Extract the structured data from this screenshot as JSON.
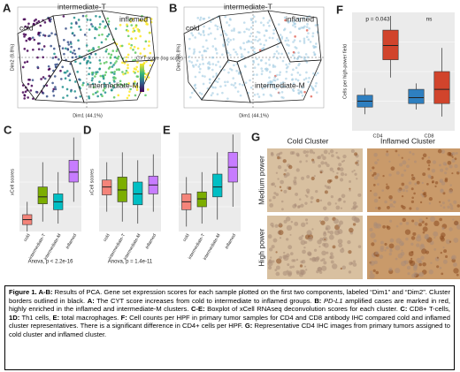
{
  "panels": {
    "A": {
      "letter": "A",
      "clusters": [
        "cold",
        "intermediate-T",
        "inflamed",
        "intermediate-M"
      ],
      "xlabel": "Dim1 (44.1%)",
      "ylabel": "Dim2 (8.8%)",
      "legend": "CYT score (log scale)"
    },
    "B": {
      "letter": "B",
      "clusters": [
        "cold",
        "intermediate-T",
        "inflamed",
        "intermediate-M"
      ],
      "xlabel": "Dim1 (44.1%)",
      "ylabel": "Dim2 (8.8%)"
    },
    "C": {
      "letter": "C",
      "ylabel": "xCell scores",
      "stat": "Anova, p < 2.2e-16",
      "ylim": [
        0,
        1
      ],
      "boxes": [
        {
          "name": "cold",
          "color": "#f4847a",
          "median": 0.12,
          "q1": 0.07,
          "q3": 0.17,
          "low": 0.0,
          "high": 0.3
        },
        {
          "name": "intermediate-T",
          "color": "#7cae00",
          "median": 0.35,
          "q1": 0.28,
          "q3": 0.45,
          "low": 0.1,
          "high": 0.7
        },
        {
          "name": "intermediate-M",
          "color": "#00bfc4",
          "median": 0.3,
          "q1": 0.22,
          "q3": 0.38,
          "low": 0.08,
          "high": 0.6
        },
        {
          "name": "inflamed",
          "color": "#c77cff",
          "median": 0.6,
          "q1": 0.5,
          "q3": 0.72,
          "low": 0.3,
          "high": 0.95
        }
      ]
    },
    "D": {
      "letter": "D",
      "ylabel": "xCell scores",
      "stat": "Anova, p = 1.4e-11",
      "ylim": [
        0,
        1
      ],
      "boxes": [
        {
          "name": "cold",
          "color": "#f4847a",
          "median": 0.45,
          "q1": 0.37,
          "q3": 0.52,
          "low": 0.2,
          "high": 0.7
        },
        {
          "name": "intermediate-T",
          "color": "#7cae00",
          "median": 0.42,
          "q1": 0.3,
          "q3": 0.55,
          "low": 0.1,
          "high": 0.8
        },
        {
          "name": "intermediate-M",
          "color": "#00bfc4",
          "median": 0.38,
          "q1": 0.27,
          "q3": 0.5,
          "low": 0.08,
          "high": 0.72
        },
        {
          "name": "inflamed",
          "color": "#c77cff",
          "median": 0.47,
          "q1": 0.38,
          "q3": 0.56,
          "low": 0.2,
          "high": 0.78
        }
      ]
    },
    "E": {
      "letter": "E",
      "ylim": [
        0,
        1
      ],
      "boxes": [
        {
          "name": "cold",
          "color": "#f4847a",
          "median": 0.3,
          "q1": 0.22,
          "q3": 0.38,
          "low": 0.05,
          "high": 0.55
        },
        {
          "name": "intermediate-T",
          "color": "#7cae00",
          "median": 0.33,
          "q1": 0.25,
          "q3": 0.4,
          "low": 0.08,
          "high": 0.6
        },
        {
          "name": "intermediate-M",
          "color": "#00bfc4",
          "median": 0.45,
          "q1": 0.35,
          "q3": 0.58,
          "low": 0.12,
          "high": 0.8
        },
        {
          "name": "inflamed",
          "color": "#c77cff",
          "median": 0.65,
          "q1": 0.5,
          "q3": 0.8,
          "low": 0.25,
          "high": 0.98
        }
      ]
    },
    "F": {
      "letter": "F",
      "ylabel": "Cells per high-power field",
      "groups": [
        "CD4",
        "CD8"
      ],
      "stats": [
        "p = 0.043",
        "ns"
      ],
      "ylim": [
        0,
        1
      ],
      "boxes": [
        {
          "color": "#2e7fc0",
          "median": 0.25,
          "q1": 0.2,
          "q3": 0.3,
          "low": 0.14,
          "high": 0.36
        },
        {
          "color": "#d1442c",
          "median": 0.72,
          "q1": 0.6,
          "q3": 0.85,
          "low": 0.45,
          "high": 0.97
        },
        {
          "color": "#2e7fc0",
          "median": 0.28,
          "q1": 0.23,
          "q3": 0.35,
          "low": 0.18,
          "high": 0.4
        },
        {
          "color": "#d1442c",
          "median": 0.35,
          "q1": 0.23,
          "q3": 0.5,
          "low": 0.12,
          "high": 0.7
        }
      ]
    },
    "G": {
      "letter": "G",
      "columns": [
        "Cold Cluster",
        "Inflamed Cluster"
      ],
      "rows": [
        "Medium power",
        "High power"
      ]
    }
  },
  "caption": [
    {
      "text": "Figure 1. A-B:",
      "style": "bold"
    },
    {
      "text": " Results of PCA. Gene set expression scores for each sample plotted on the first two components, labeled “Dim1” and “Dim2”. Cluster borders outlined in black. "
    },
    {
      "text": "A:",
      "style": "bold"
    },
    {
      "text": " The CYT score increases from cold to intermediate to inflamed groups. "
    },
    {
      "text": "B: ",
      "style": "bold"
    },
    {
      "text": "PD-L1",
      "style": "italic"
    },
    {
      "text": " amplified cases are marked in red, highly enriched in the inflamed and intermediate-M clusters. "
    },
    {
      "text": "C-E:",
      "style": "bold"
    },
    {
      "text": " Boxplot of xCell RNAseq deconvolution scores for each cluster. "
    },
    {
      "text": "C:",
      "style": "bold"
    },
    {
      "text": " CD8+ T-cells, "
    },
    {
      "text": "1D:",
      "style": "bold"
    },
    {
      "text": " Th1 cells, "
    },
    {
      "text": "E:",
      "style": "bold"
    },
    {
      "text": " total macrophages. "
    },
    {
      "text": "F:",
      "style": "bold"
    },
    {
      "text": " Cell counts per HPF in primary tumor samples for CD4 and CD8 antibody IHC compared cold and inflamed cluster representatives. There is a significant difference in CD4+ cells per HPF. "
    },
    {
      "text": "G:",
      "style": "bold"
    },
    {
      "text": " Representative CD4 IHC images from primary tumors assigned to cold cluster and inflamed cluster."
    }
  ]
}
